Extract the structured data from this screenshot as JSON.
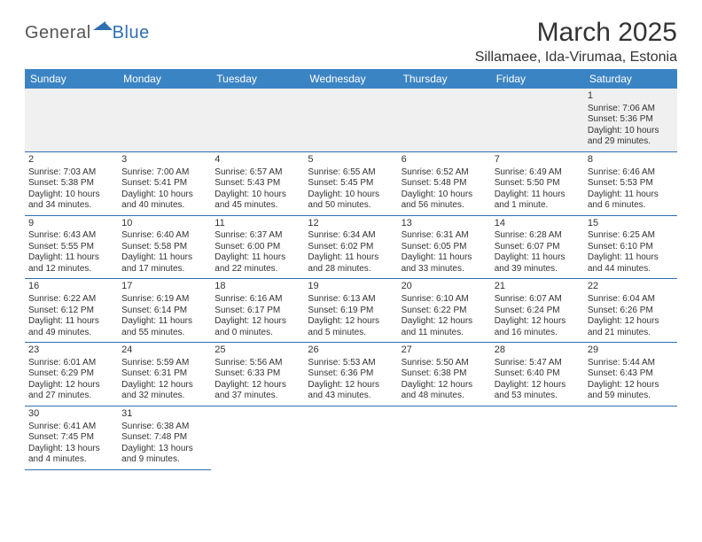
{
  "logo": {
    "part1": "General",
    "part2": "Blue",
    "mark_color": "#2f6fb0"
  },
  "title": "March 2025",
  "location": "Sillamaee, Ida-Virumaa, Estonia",
  "header_bg": "#3b84c4",
  "header_fg": "#ffffff",
  "rule_color": "#2f6fb0",
  "weekdays": [
    "Sunday",
    "Monday",
    "Tuesday",
    "Wednesday",
    "Thursday",
    "Friday",
    "Saturday"
  ],
  "weeks": [
    [
      null,
      null,
      null,
      null,
      null,
      null,
      {
        "d": "1",
        "sr": "7:06 AM",
        "ss": "5:36 PM",
        "dl": "10 hours and 29 minutes."
      }
    ],
    [
      {
        "d": "2",
        "sr": "7:03 AM",
        "ss": "5:38 PM",
        "dl": "10 hours and 34 minutes."
      },
      {
        "d": "3",
        "sr": "7:00 AM",
        "ss": "5:41 PM",
        "dl": "10 hours and 40 minutes."
      },
      {
        "d": "4",
        "sr": "6:57 AM",
        "ss": "5:43 PM",
        "dl": "10 hours and 45 minutes."
      },
      {
        "d": "5",
        "sr": "6:55 AM",
        "ss": "5:45 PM",
        "dl": "10 hours and 50 minutes."
      },
      {
        "d": "6",
        "sr": "6:52 AM",
        "ss": "5:48 PM",
        "dl": "10 hours and 56 minutes."
      },
      {
        "d": "7",
        "sr": "6:49 AM",
        "ss": "5:50 PM",
        "dl": "11 hours and 1 minute."
      },
      {
        "d": "8",
        "sr": "6:46 AM",
        "ss": "5:53 PM",
        "dl": "11 hours and 6 minutes."
      }
    ],
    [
      {
        "d": "9",
        "sr": "6:43 AM",
        "ss": "5:55 PM",
        "dl": "11 hours and 12 minutes."
      },
      {
        "d": "10",
        "sr": "6:40 AM",
        "ss": "5:58 PM",
        "dl": "11 hours and 17 minutes."
      },
      {
        "d": "11",
        "sr": "6:37 AM",
        "ss": "6:00 PM",
        "dl": "11 hours and 22 minutes."
      },
      {
        "d": "12",
        "sr": "6:34 AM",
        "ss": "6:02 PM",
        "dl": "11 hours and 28 minutes."
      },
      {
        "d": "13",
        "sr": "6:31 AM",
        "ss": "6:05 PM",
        "dl": "11 hours and 33 minutes."
      },
      {
        "d": "14",
        "sr": "6:28 AM",
        "ss": "6:07 PM",
        "dl": "11 hours and 39 minutes."
      },
      {
        "d": "15",
        "sr": "6:25 AM",
        "ss": "6:10 PM",
        "dl": "11 hours and 44 minutes."
      }
    ],
    [
      {
        "d": "16",
        "sr": "6:22 AM",
        "ss": "6:12 PM",
        "dl": "11 hours and 49 minutes."
      },
      {
        "d": "17",
        "sr": "6:19 AM",
        "ss": "6:14 PM",
        "dl": "11 hours and 55 minutes."
      },
      {
        "d": "18",
        "sr": "6:16 AM",
        "ss": "6:17 PM",
        "dl": "12 hours and 0 minutes."
      },
      {
        "d": "19",
        "sr": "6:13 AM",
        "ss": "6:19 PM",
        "dl": "12 hours and 5 minutes."
      },
      {
        "d": "20",
        "sr": "6:10 AM",
        "ss": "6:22 PM",
        "dl": "12 hours and 11 minutes."
      },
      {
        "d": "21",
        "sr": "6:07 AM",
        "ss": "6:24 PM",
        "dl": "12 hours and 16 minutes."
      },
      {
        "d": "22",
        "sr": "6:04 AM",
        "ss": "6:26 PM",
        "dl": "12 hours and 21 minutes."
      }
    ],
    [
      {
        "d": "23",
        "sr": "6:01 AM",
        "ss": "6:29 PM",
        "dl": "12 hours and 27 minutes."
      },
      {
        "d": "24",
        "sr": "5:59 AM",
        "ss": "6:31 PM",
        "dl": "12 hours and 32 minutes."
      },
      {
        "d": "25",
        "sr": "5:56 AM",
        "ss": "6:33 PM",
        "dl": "12 hours and 37 minutes."
      },
      {
        "d": "26",
        "sr": "5:53 AM",
        "ss": "6:36 PM",
        "dl": "12 hours and 43 minutes."
      },
      {
        "d": "27",
        "sr": "5:50 AM",
        "ss": "6:38 PM",
        "dl": "12 hours and 48 minutes."
      },
      {
        "d": "28",
        "sr": "5:47 AM",
        "ss": "6:40 PM",
        "dl": "12 hours and 53 minutes."
      },
      {
        "d": "29",
        "sr": "5:44 AM",
        "ss": "6:43 PM",
        "dl": "12 hours and 59 minutes."
      }
    ],
    [
      {
        "d": "30",
        "sr": "6:41 AM",
        "ss": "7:45 PM",
        "dl": "13 hours and 4 minutes."
      },
      {
        "d": "31",
        "sr": "6:38 AM",
        "ss": "7:48 PM",
        "dl": "13 hours and 9 minutes."
      },
      null,
      null,
      null,
      null,
      null
    ]
  ],
  "labels": {
    "sunrise": "Sunrise: ",
    "sunset": "Sunset: ",
    "daylight": "Daylight: "
  }
}
